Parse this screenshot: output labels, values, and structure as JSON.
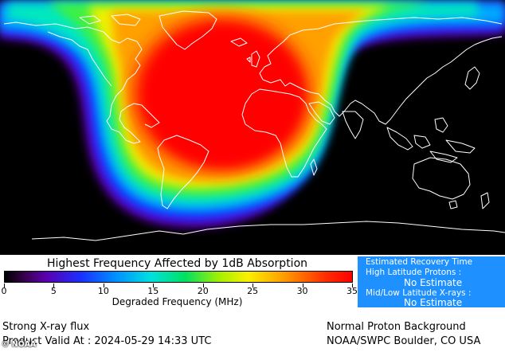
{
  "map": {
    "description_colors": {
      "background": "#000000",
      "coastline": "#ffffff",
      "peak": "#ff0000"
    }
  },
  "legend": {
    "title": "Highest Frequency Affected by 1dB Absorption",
    "xlabel": "Degraded Frequency (MHz)",
    "ticks": [
      "0",
      "5",
      "10",
      "15",
      "20",
      "25",
      "30",
      "35"
    ],
    "range": [
      0,
      35
    ]
  },
  "recovery": {
    "title": "Estimated Recovery Time",
    "high_lat_label": "High Latitude Protons :",
    "high_lat_value": "No Estimate",
    "low_lat_label": "Mid/Low Latitude X-rays :",
    "low_lat_value": "No Estimate",
    "bg_color": "#1e90ff"
  },
  "footer": {
    "flux": "Strong X-ray flux",
    "valid": "Product Valid At : 2024-05-29 14:33 UTC",
    "proton": "Normal Proton Background",
    "credit": "NOAA/SWPC Boulder, CO USA",
    "watermark": "© NOAA"
  }
}
